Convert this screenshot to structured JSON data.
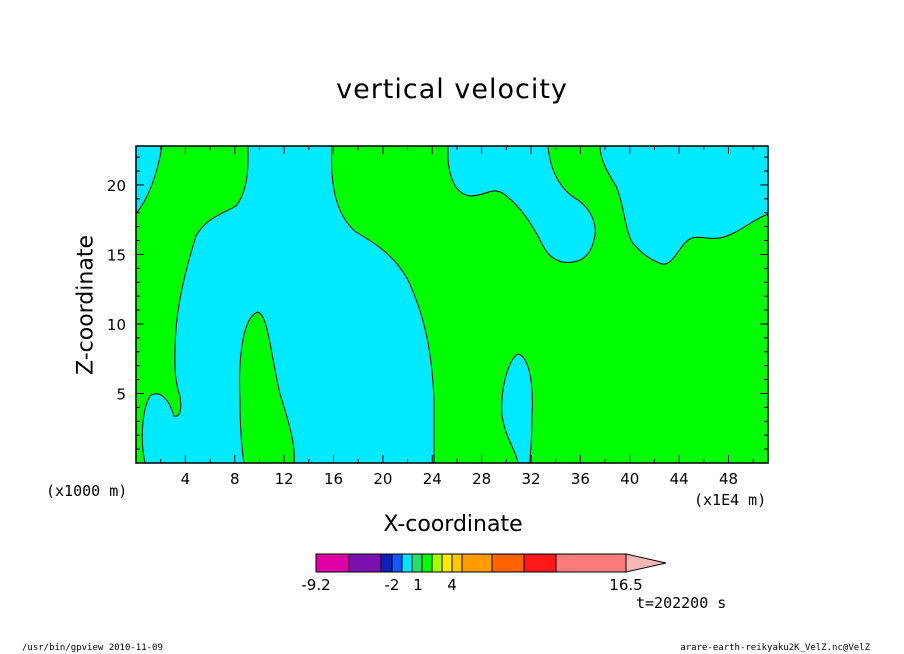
{
  "chart_data": {
    "type": "heatmap",
    "title": "vertical velocity",
    "xlabel": "X-coordinate",
    "ylabel": "Z-coordinate",
    "x_unit_label": "(x1000 m)",
    "x_scale_label": "(x1E4 m)",
    "xlim": [
      0,
      51.2
    ],
    "ylim": [
      0,
      22.8
    ],
    "x_ticks": [
      4,
      8,
      12,
      16,
      20,
      24,
      28,
      32,
      36,
      40,
      44,
      48
    ],
    "y_ticks": [
      5,
      10,
      15,
      20
    ],
    "colorbar": {
      "colors": [
        "#e000a8",
        "#7a10b0",
        "#1020c0",
        "#1458ff",
        "#00e6ff",
        "#20e070",
        "#00ff00",
        "#a8ff00",
        "#ffe800",
        "#ffc800",
        "#ff9c00",
        "#ff6400",
        "#ff1818",
        "#ff7c7c",
        "#f7b7b7"
      ],
      "bounds": [
        -9.2,
        16.5
      ],
      "tick_labels": [
        "-9.2",
        "-2",
        "1",
        "4",
        "16.5"
      ]
    },
    "regions": [
      {
        "name": "negative",
        "color": "#00eaff"
      },
      {
        "name": "weak-positive",
        "color": "#00ff00"
      }
    ],
    "annotation_time": "t=202200 s"
  },
  "footer": {
    "left": "/usr/bin/gpview  2010-11-09",
    "right": "arare-earth-reikyaku2K_VelZ.nc@VelZ"
  }
}
